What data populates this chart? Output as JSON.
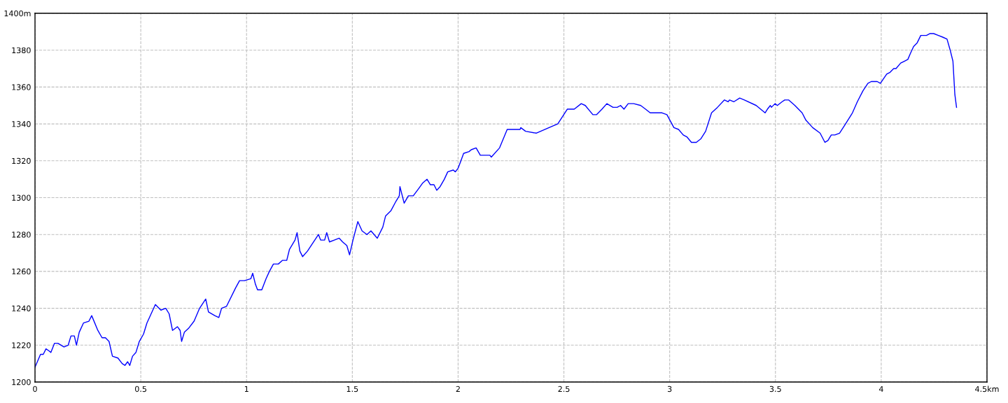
{
  "chart_data": {
    "type": "line",
    "xlim": [
      0,
      4.5
    ],
    "xticks": [
      0,
      0.5,
      1,
      1.5,
      2,
      2.5,
      3,
      3.5,
      4,
      {
        "value": 4.5,
        "label": "4.5km"
      }
    ],
    "ylim": [
      1200,
      1400
    ],
    "yticks": [
      1200,
      1220,
      1240,
      1260,
      1280,
      1300,
      1320,
      1340,
      1360,
      1380,
      {
        "value": 1400,
        "label": "1400m"
      }
    ],
    "grid": true,
    "line_style": "solid",
    "marker": "none",
    "series": [
      {
        "color": "#0000ff",
        "x": [
          0,
          0.026,
          0.039,
          0.052,
          0.065,
          0.075,
          0.092,
          0.108,
          0.137,
          0.157,
          0.17,
          0.186,
          0.196,
          0.209,
          0.229,
          0.255,
          0.268,
          0.297,
          0.317,
          0.333,
          0.35,
          0.366,
          0.392,
          0.412,
          0.425,
          0.438,
          0.448,
          0.461,
          0.477,
          0.493,
          0.513,
          0.529,
          0.549,
          0.569,
          0.595,
          0.618,
          0.634,
          0.65,
          0.673,
          0.686,
          0.693,
          0.706,
          0.725,
          0.752,
          0.778,
          0.807,
          0.82,
          0.85,
          0.869,
          0.882,
          0.905,
          0.948,
          0.967,
          0.99,
          1.02,
          1.029,
          1.042,
          1.052,
          1.072,
          1.092,
          1.108,
          1.127,
          1.15,
          1.17,
          1.19,
          1.203,
          1.229,
          1.239,
          1.252,
          1.265,
          1.288,
          1.317,
          1.34,
          1.35,
          1.369,
          1.379,
          1.392,
          1.415,
          1.438,
          1.454,
          1.474,
          1.487,
          1.503,
          1.526,
          1.546,
          1.569,
          1.588,
          1.618,
          1.644,
          1.657,
          1.683,
          1.706,
          1.722,
          1.725,
          1.745,
          1.765,
          1.788,
          1.814,
          1.833,
          1.853,
          1.869,
          1.886,
          1.899,
          1.915,
          1.935,
          1.951,
          1.977,
          1.987,
          2.0,
          2.01,
          2.026,
          2.052,
          2.062,
          2.085,
          2.105,
          2.15,
          2.157,
          2.196,
          2.232,
          2.293,
          2.296,
          2.319,
          2.369,
          2.451,
          2.471,
          2.516,
          2.549,
          2.582,
          2.601,
          2.637,
          2.654,
          2.68,
          2.703,
          2.732,
          2.752,
          2.768,
          2.784,
          2.804,
          2.83,
          2.863,
          2.886,
          2.908,
          2.964,
          2.987,
          3.02,
          3.042,
          3.064,
          3.081,
          3.103,
          3.126,
          3.148,
          3.17,
          3.198,
          3.226,
          3.259,
          3.276,
          3.283,
          3.303,
          3.331,
          3.353,
          3.409,
          3.451,
          3.462,
          3.476,
          3.481,
          3.498,
          3.509,
          3.531,
          3.544,
          3.562,
          3.592,
          3.626,
          3.644,
          3.676,
          3.711,
          3.734,
          3.748,
          3.764,
          3.781,
          3.803,
          3.826,
          3.864,
          3.887,
          3.914,
          3.937,
          3.953,
          3.97,
          3.981,
          3.996,
          4.014,
          4.026,
          4.042,
          4.059,
          4.07,
          4.092,
          4.109,
          4.126,
          4.137,
          4.153,
          4.17,
          4.187,
          4.214,
          4.231,
          4.248,
          4.27,
          4.292,
          4.311,
          4.326,
          4.339,
          4.342,
          4.348,
          4.356
        ],
        "values": [
          1208,
          1215,
          1215,
          1218,
          1217,
          1216,
          1221,
          1221,
          1219,
          1220,
          1225,
          1225,
          1220,
          1227,
          1232,
          1233,
          1236,
          1228,
          1224,
          1224,
          1222,
          1214,
          1213,
          1210,
          1209,
          1211,
          1209,
          1214,
          1216,
          1222,
          1226,
          1232,
          1237,
          1242,
          1239,
          1240,
          1237,
          1228,
          1230,
          1228,
          1222,
          1227,
          1229,
          1233,
          1240,
          1245,
          1238,
          1236,
          1235,
          1240,
          1241,
          1251,
          1255,
          1255,
          1256,
          1259,
          1253,
          1250,
          1250,
          1256,
          1260,
          1264,
          1264,
          1266,
          1266,
          1272,
          1277,
          1281,
          1271,
          1268,
          1271,
          1276,
          1280,
          1277,
          1277,
          1281,
          1276,
          1277,
          1278,
          1276,
          1274,
          1269,
          1277,
          1287,
          1282,
          1280,
          1282,
          1278,
          1284,
          1290,
          1293,
          1298,
          1301,
          1306,
          1297,
          1301,
          1301,
          1305,
          1308,
          1310,
          1307,
          1307,
          1304,
          1306,
          1310,
          1314,
          1315,
          1314,
          1316,
          1319,
          1324,
          1325,
          1326,
          1327,
          1323,
          1323,
          1322,
          1327,
          1337,
          1337,
          1338,
          1336,
          1335,
          1339,
          1340,
          1348,
          1348,
          1351,
          1350,
          1345,
          1345,
          1348,
          1351,
          1349,
          1349,
          1350,
          1348,
          1351,
          1351,
          1350,
          1348,
          1346,
          1346,
          1345,
          1338,
          1337,
          1334,
          1333,
          1330,
          1330,
          1332,
          1336,
          1346,
          1349,
          1353,
          1352,
          1353,
          1352,
          1354,
          1353,
          1350,
          1346,
          1348,
          1350,
          1349,
          1351,
          1350,
          1352,
          1353,
          1353,
          1350,
          1346,
          1342,
          1338,
          1335,
          1330,
          1331,
          1334,
          1334,
          1335,
          1339,
          1346,
          1352,
          1358,
          1362,
          1363,
          1363,
          1363,
          1362,
          1365,
          1367,
          1368,
          1370,
          1370,
          1373,
          1374,
          1375,
          1378,
          1382,
          1384,
          1388,
          1388,
          1389,
          1389,
          1388,
          1387,
          1386,
          1380,
          1374,
          1368,
          1356,
          1349
        ]
      }
    ]
  }
}
